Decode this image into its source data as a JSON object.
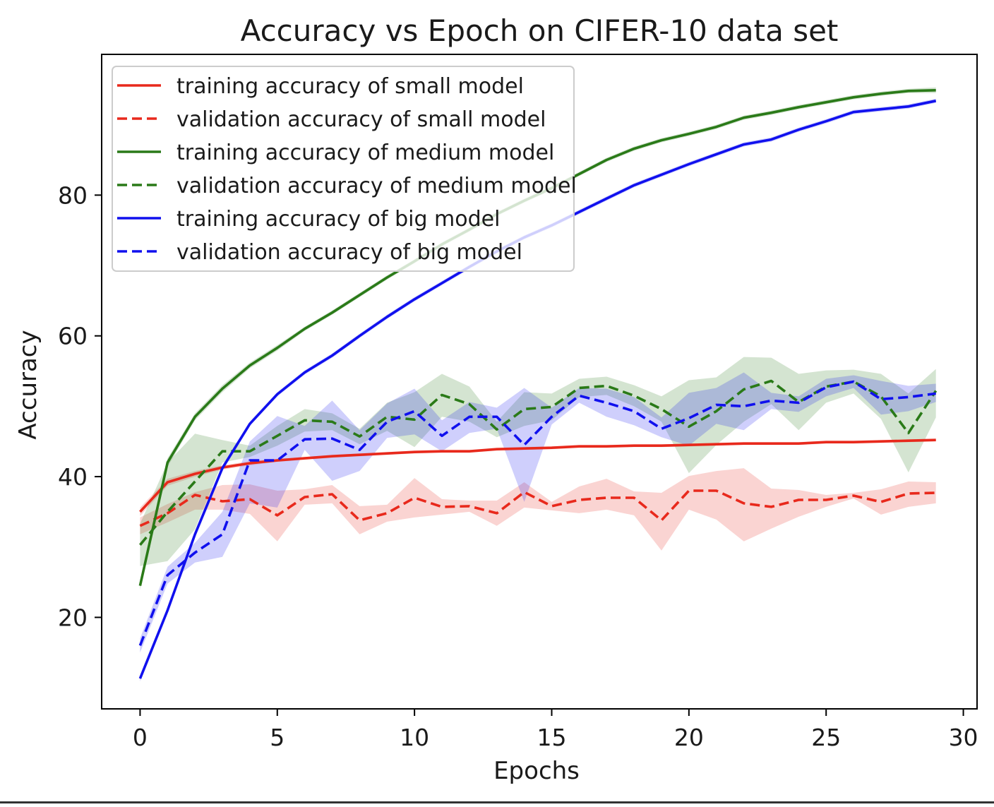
{
  "chart_data": {
    "type": "line",
    "title": "Accuracy vs Epoch on CIFER-10 data set",
    "xlabel": "Epochs",
    "ylabel": "Accuracy",
    "xlim": [
      -1.4,
      30.5
    ],
    "ylim": [
      7,
      100
    ],
    "xticks": [
      0,
      5,
      10,
      15,
      20,
      25,
      30
    ],
    "yticks": [
      20,
      40,
      60,
      80
    ],
    "grid": false,
    "legend_position": "upper-left",
    "x": [
      0,
      1,
      2,
      3,
      4,
      5,
      6,
      7,
      8,
      9,
      10,
      11,
      12,
      13,
      14,
      15,
      16,
      17,
      18,
      19,
      20,
      21,
      22,
      23,
      24,
      25,
      26,
      27,
      28,
      29
    ],
    "series": [
      {
        "name": "training accuracy of small model",
        "color": "#e8291c",
        "dash": "solid",
        "values": [
          35.0,
          39.2,
          40.4,
          41.3,
          41.9,
          42.3,
          42.6,
          42.9,
          43.1,
          43.3,
          43.5,
          43.6,
          43.6,
          43.9,
          44.0,
          44.1,
          44.3,
          44.3,
          44.4,
          44.4,
          44.5,
          44.6,
          44.7,
          44.7,
          44.7,
          44.9,
          44.9,
          45.0,
          45.1,
          45.2
        ],
        "band_lower": [
          34.4,
          38.7,
          40.0,
          41.0,
          41.6,
          42.1,
          42.4,
          42.7,
          42.9,
          43.1,
          43.3,
          43.4,
          43.4,
          43.7,
          43.8,
          43.9,
          44.1,
          44.1,
          44.2,
          44.2,
          44.3,
          44.4,
          44.5,
          44.5,
          44.5,
          44.7,
          44.7,
          44.8,
          44.9,
          45.0
        ],
        "band_upper": [
          35.6,
          39.7,
          40.8,
          41.6,
          42.2,
          42.5,
          42.8,
          43.1,
          43.3,
          43.5,
          43.7,
          43.8,
          43.8,
          44.1,
          44.2,
          44.3,
          44.5,
          44.5,
          44.6,
          44.6,
          44.7,
          44.8,
          44.9,
          44.9,
          44.9,
          45.1,
          45.1,
          45.2,
          45.3,
          45.4
        ]
      },
      {
        "name": "validation accuracy of small model",
        "color": "#e8291c",
        "dash": "dashed",
        "values": [
          33.0,
          34.8,
          37.4,
          36.5,
          36.8,
          34.5,
          37.1,
          37.5,
          33.8,
          34.8,
          37.0,
          35.7,
          35.8,
          34.8,
          37.8,
          35.8,
          36.7,
          37.0,
          37.0,
          33.8,
          38.0,
          38.0,
          36.2,
          35.7,
          36.7,
          36.7,
          37.3,
          36.4,
          37.6,
          37.7
        ],
        "band_lower": [
          31.8,
          33.5,
          35.3,
          35.3,
          34.7,
          30.8,
          36.0,
          36.2,
          31.8,
          33.6,
          34.2,
          34.6,
          35.0,
          33.0,
          35.6,
          35.2,
          34.8,
          35.3,
          34.5,
          29.5,
          35.3,
          33.9,
          30.8,
          32.6,
          34.3,
          35.7,
          36.9,
          34.6,
          35.7,
          36.2
        ],
        "band_upper": [
          34.2,
          36.1,
          37.8,
          38.8,
          38.9,
          38.0,
          38.2,
          38.8,
          35.8,
          36.0,
          39.8,
          36.8,
          36.6,
          36.6,
          39.2,
          36.4,
          38.6,
          39.7,
          37.9,
          37.7,
          40.1,
          40.8,
          41.2,
          38.3,
          38.1,
          37.4,
          37.7,
          38.2,
          39.3,
          39.2
        ]
      },
      {
        "name": "training accuracy of medium model",
        "color": "#2a7a18",
        "dash": "solid",
        "values": [
          24.5,
          42.0,
          48.5,
          52.5,
          55.8,
          58.3,
          61.0,
          63.3,
          65.8,
          68.3,
          70.6,
          73.0,
          75.1,
          77.3,
          79.2,
          81.0,
          83.0,
          85.0,
          86.6,
          87.8,
          88.7,
          89.7,
          91.0,
          91.7,
          92.5,
          93.2,
          93.9,
          94.4,
          94.8,
          94.9
        ],
        "band_lower": [
          23.9,
          41.4,
          48.0,
          52.0,
          55.4,
          57.9,
          60.7,
          63.0,
          65.5,
          68.0,
          70.3,
          72.7,
          74.8,
          77.0,
          78.9,
          80.7,
          82.7,
          84.7,
          86.3,
          87.5,
          88.4,
          89.4,
          90.7,
          91.4,
          92.2,
          92.9,
          93.6,
          94.1,
          94.5,
          94.5
        ],
        "band_upper": [
          25.1,
          42.6,
          49.0,
          53.0,
          56.2,
          58.7,
          61.3,
          63.6,
          66.1,
          68.6,
          70.9,
          73.3,
          75.4,
          77.6,
          79.5,
          81.3,
          83.3,
          85.3,
          86.9,
          88.1,
          89.0,
          90.0,
          91.3,
          92.0,
          92.8,
          93.5,
          94.2,
          94.7,
          95.1,
          95.3
        ]
      },
      {
        "name": "validation accuracy of medium model",
        "color": "#2a7a18",
        "dash": "dashed",
        "values": [
          30.3,
          35.0,
          39.3,
          43.6,
          43.6,
          45.8,
          48.0,
          47.8,
          45.7,
          48.5,
          48.1,
          51.6,
          50.3,
          46.7,
          49.6,
          49.9,
          52.6,
          52.9,
          51.5,
          49.6,
          47.1,
          49.3,
          52.4,
          53.6,
          50.6,
          52.8,
          53.5,
          51.4,
          46.2,
          52.2
        ],
        "band_lower": [
          27.3,
          28.0,
          32.5,
          42.0,
          42.8,
          44.4,
          46.4,
          46.6,
          44.6,
          46.5,
          44.2,
          48.5,
          47.8,
          45.6,
          47.2,
          48.0,
          51.3,
          51.6,
          50.0,
          47.8,
          40.5,
          44.5,
          47.8,
          50.3,
          46.6,
          50.5,
          51.8,
          48.2,
          40.6,
          48.4
        ],
        "band_upper": [
          33.3,
          42.0,
          46.1,
          45.2,
          44.4,
          47.2,
          49.6,
          49.0,
          46.8,
          50.5,
          52.0,
          54.6,
          52.8,
          47.8,
          52.0,
          51.8,
          53.9,
          54.2,
          53.0,
          51.4,
          53.7,
          54.1,
          57.0,
          56.9,
          54.6,
          55.1,
          55.2,
          54.6,
          51.8,
          55.3
        ]
      },
      {
        "name": "training accuracy of big model",
        "color": "#1010ee",
        "dash": "solid",
        "values": [
          11.3,
          21.0,
          31.8,
          41.2,
          47.5,
          51.7,
          54.8,
          57.2,
          60.0,
          62.7,
          65.2,
          67.5,
          69.8,
          72.0,
          74.0,
          75.7,
          77.6,
          79.5,
          81.4,
          82.9,
          84.4,
          85.8,
          87.2,
          87.9,
          89.3,
          90.5,
          91.8,
          92.2,
          92.6,
          93.4
        ],
        "band_lower": [
          10.9,
          20.6,
          31.4,
          40.8,
          47.2,
          51.4,
          54.5,
          56.9,
          59.7,
          62.4,
          64.9,
          67.2,
          69.5,
          71.7,
          73.7,
          75.4,
          77.3,
          79.2,
          81.1,
          82.6,
          84.1,
          85.5,
          86.9,
          87.6,
          89.0,
          90.2,
          91.5,
          91.9,
          92.3,
          93.1
        ],
        "band_upper": [
          11.7,
          21.4,
          32.2,
          41.6,
          47.8,
          52.0,
          55.1,
          57.5,
          60.3,
          63.0,
          65.5,
          67.8,
          70.1,
          72.3,
          74.3,
          76.0,
          77.9,
          79.8,
          81.7,
          83.2,
          84.7,
          86.1,
          87.5,
          88.2,
          89.6,
          90.8,
          92.1,
          92.5,
          92.9,
          93.7
        ]
      },
      {
        "name": "validation accuracy of big model",
        "color": "#1010ee",
        "dash": "dashed",
        "values": [
          16.0,
          26.0,
          29.2,
          31.8,
          42.3,
          42.3,
          45.3,
          45.4,
          43.8,
          47.8,
          49.3,
          45.8,
          48.5,
          48.5,
          44.5,
          48.5,
          51.5,
          50.5,
          49.3,
          46.8,
          48.3,
          50.2,
          50.0,
          50.8,
          50.5,
          52.7,
          53.5,
          51.0,
          51.3,
          51.8
        ],
        "band_lower": [
          15.0,
          24.8,
          27.8,
          28.6,
          36.2,
          35.6,
          43.8,
          39.4,
          40.8,
          45.5,
          46.0,
          43.6,
          46.2,
          46.8,
          36.4,
          47.4,
          50.5,
          48.5,
          47.3,
          45.6,
          44.4,
          47.5,
          46.6,
          49.6,
          49.2,
          51.4,
          52.6,
          48.8,
          49.3,
          50.6
        ],
        "band_upper": [
          17.0,
          27.2,
          30.6,
          35.0,
          45.0,
          48.6,
          47.2,
          50.8,
          46.6,
          50.4,
          52.5,
          48.0,
          50.6,
          49.8,
          52.6,
          49.8,
          52.6,
          52.5,
          51.3,
          48.4,
          51.9,
          52.6,
          54.8,
          51.9,
          51.4,
          53.9,
          54.4,
          53.6,
          52.9,
          53.2
        ]
      }
    ]
  }
}
